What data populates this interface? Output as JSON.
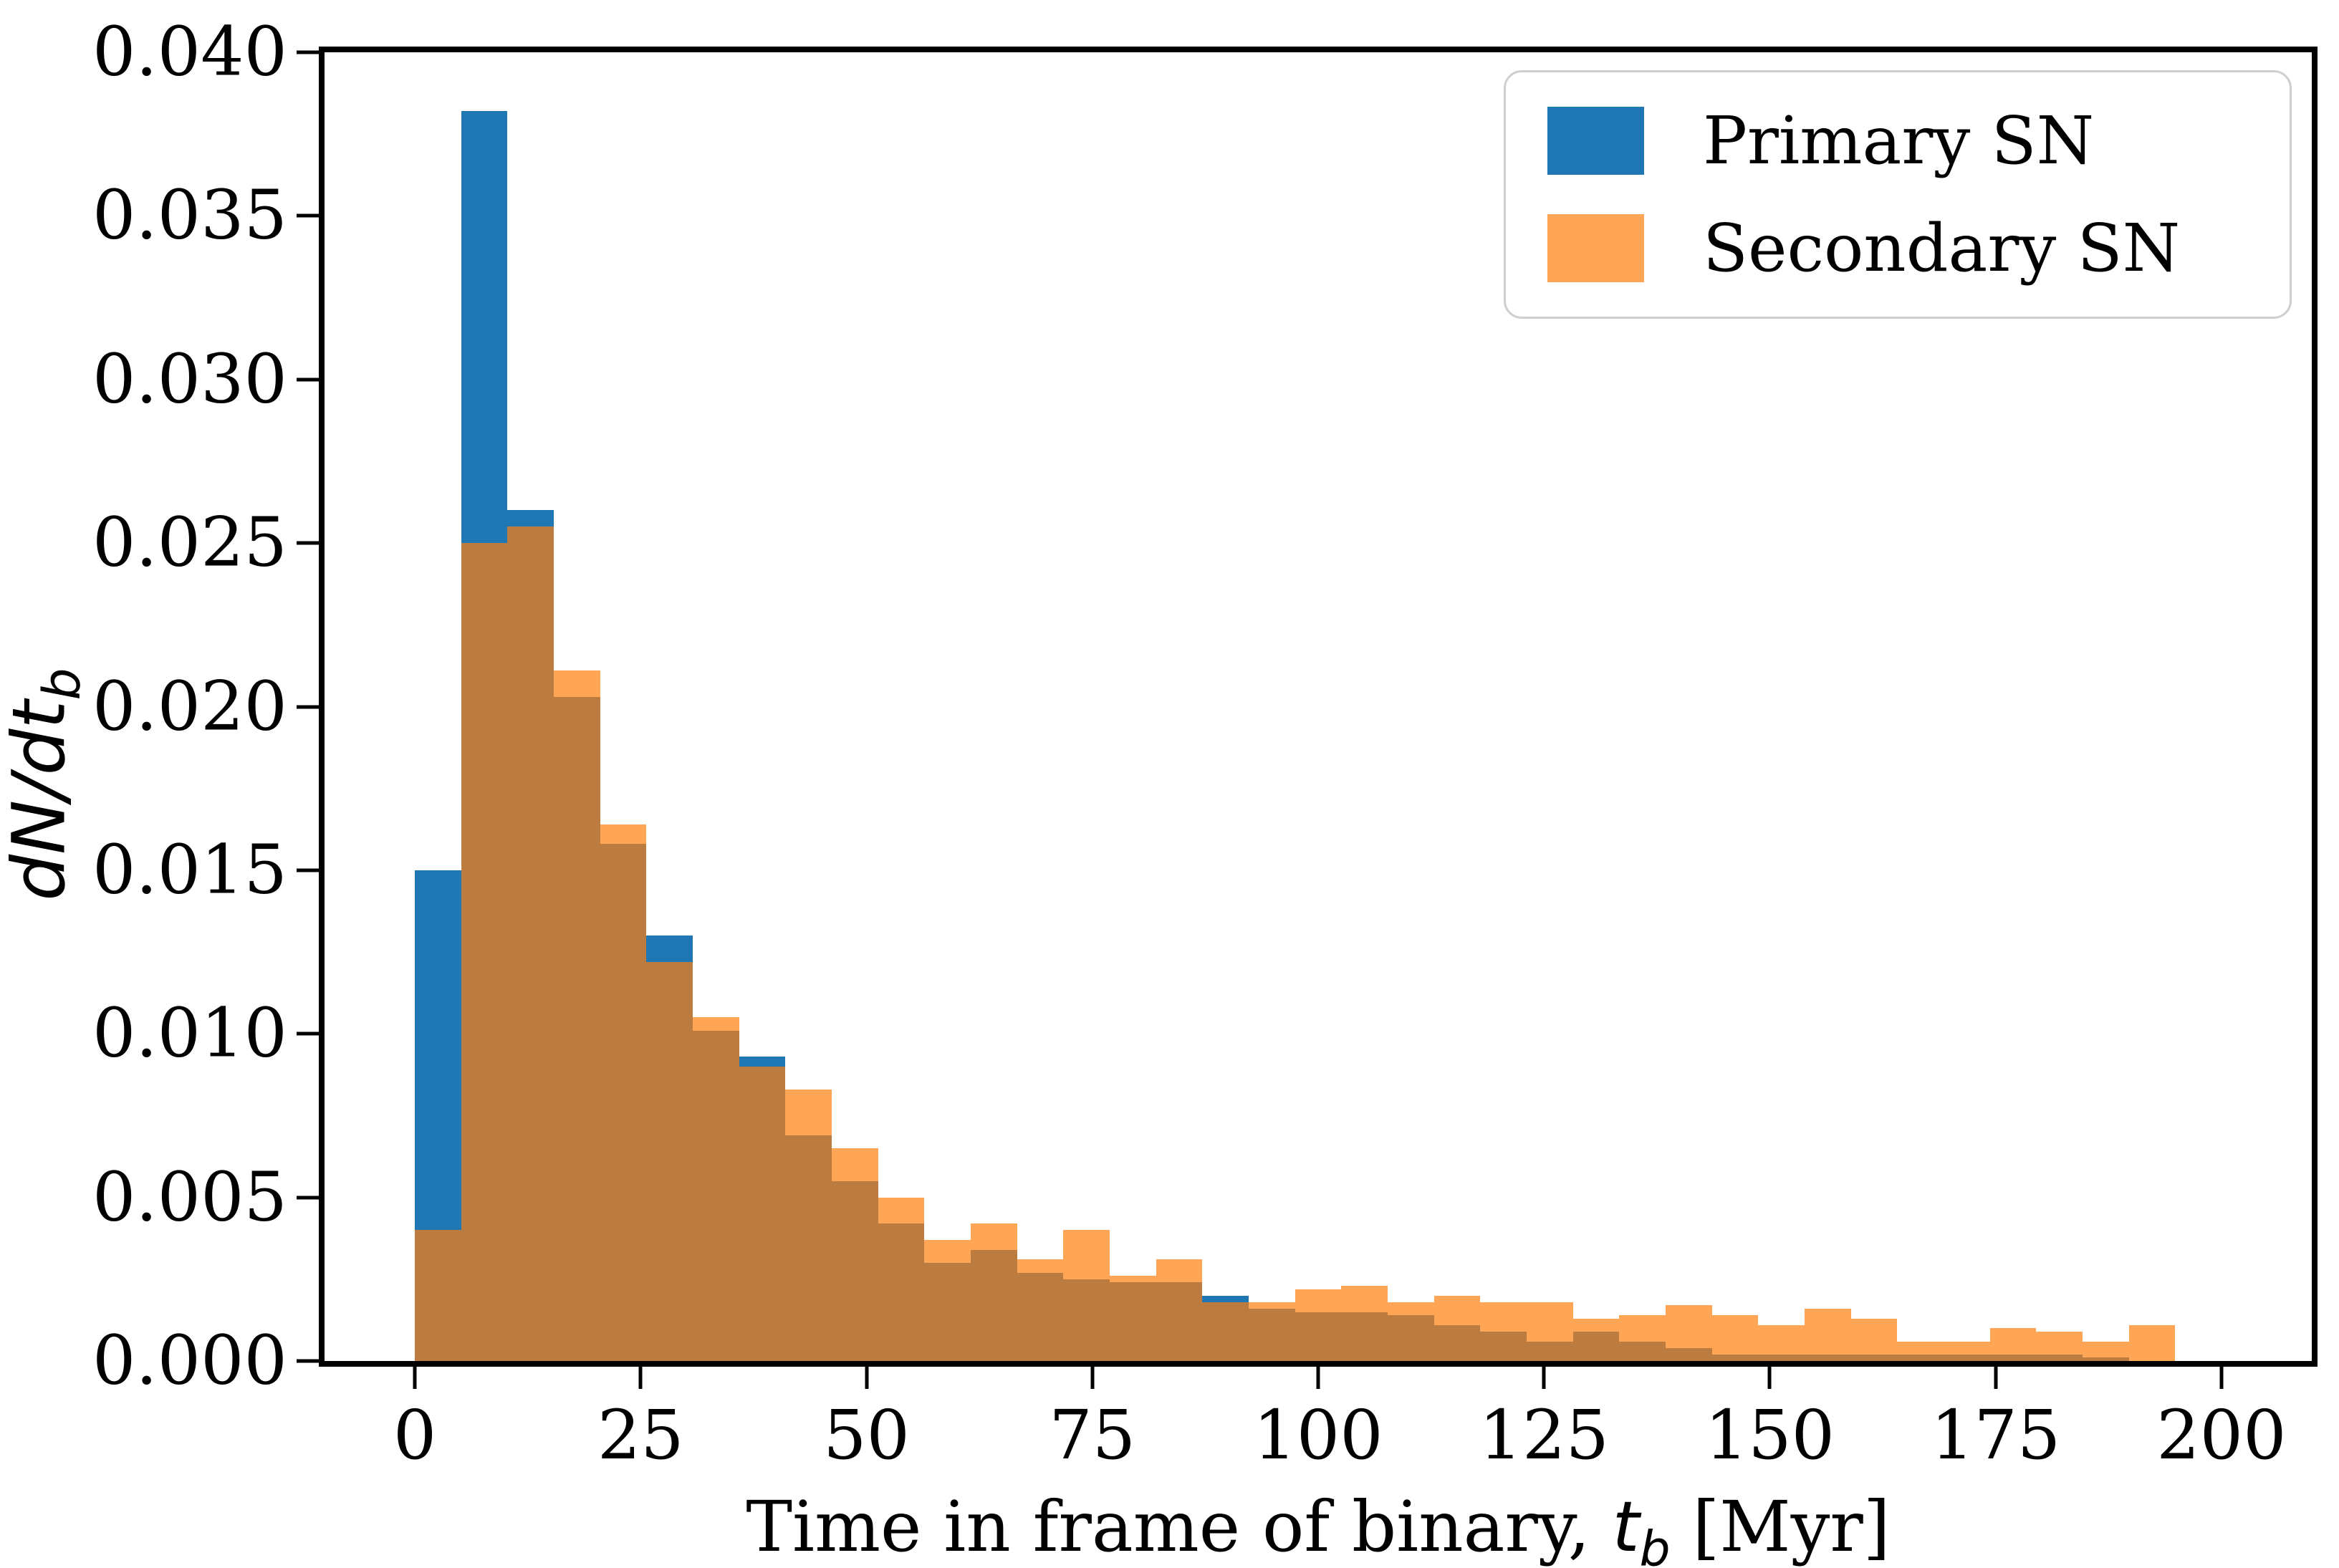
{
  "chart_data": {
    "type": "bar",
    "subtype": "overlapping-histogram",
    "title": "",
    "xlabel": {
      "prefix": "Time in frame of binary, ",
      "var": "t",
      "var_sub": "b",
      "suffix": " [Myr]"
    },
    "ylabel": {
      "main": "dN/dt",
      "sub": "b"
    },
    "xlim": [
      -10,
      210
    ],
    "ylim": [
      0,
      0.04
    ],
    "grid": false,
    "legend_position": "upper right",
    "x_ticks": {
      "values": [
        0,
        25,
        50,
        75,
        100,
        125,
        150,
        175,
        200
      ],
      "labels": [
        "0",
        "25",
        "50",
        "75",
        "100",
        "125",
        "150",
        "175",
        "200"
      ]
    },
    "y_ticks": {
      "values": [
        0.0,
        0.005,
        0.01,
        0.015,
        0.02,
        0.025,
        0.03,
        0.035,
        0.04
      ],
      "labels": [
        "0.000",
        "0.005",
        "0.010",
        "0.015",
        "0.020",
        "0.025",
        "0.030",
        "0.035",
        "0.040"
      ]
    },
    "bins": {
      "count": 39,
      "range_myr": [
        0,
        200
      ],
      "width_myr": 5.128
    },
    "bin_edges_myr": [
      0,
      5.13,
      10.26,
      15.38,
      20.51,
      25.64,
      30.77,
      35.9,
      41.03,
      46.15,
      51.28,
      56.41,
      61.54,
      66.67,
      71.79,
      76.92,
      82.05,
      87.18,
      92.31,
      97.44,
      102.56,
      107.69,
      112.82,
      117.95,
      123.08,
      128.21,
      133.33,
      138.46,
      143.59,
      148.72,
      153.85,
      158.97,
      164.1,
      169.23,
      174.36,
      179.49,
      184.62,
      189.74,
      194.87,
      200
    ],
    "series": [
      {
        "name": "Primary SN",
        "color": "#1f77b4",
        "alpha": 1.0,
        "values": [
          0.015,
          0.0382,
          0.026,
          0.0203,
          0.0158,
          0.013,
          0.0101,
          0.0093,
          0.0069,
          0.0055,
          0.0042,
          0.003,
          0.0034,
          0.0027,
          0.0025,
          0.0024,
          0.0024,
          0.002,
          0.0016,
          0.0015,
          0.0015,
          0.0014,
          0.0011,
          0.0009,
          0.0006,
          0.0009,
          0.0006,
          0.0004,
          0.0002,
          0.0002,
          0.0002,
          0.0002,
          0.0002,
          0.0002,
          0.0002,
          0.0002,
          0.0001,
          0.0,
          0.0
        ]
      },
      {
        "name": "Secondary SN",
        "color": "#ff7f0e",
        "alpha": 0.7,
        "values": [
          0.004,
          0.025,
          0.0255,
          0.0211,
          0.0164,
          0.0122,
          0.0105,
          0.009,
          0.0083,
          0.0065,
          0.005,
          0.0037,
          0.0042,
          0.0031,
          0.004,
          0.0026,
          0.0031,
          0.0018,
          0.0018,
          0.0022,
          0.0023,
          0.0018,
          0.002,
          0.0018,
          0.0018,
          0.0013,
          0.0014,
          0.0017,
          0.0014,
          0.0011,
          0.0016,
          0.0013,
          0.0006,
          0.0006,
          0.001,
          0.0009,
          0.0006,
          0.0011,
          0.0
        ]
      }
    ],
    "legend": {
      "items": [
        {
          "label": "Primary SN"
        },
        {
          "label": "Secondary SN"
        }
      ]
    }
  }
}
